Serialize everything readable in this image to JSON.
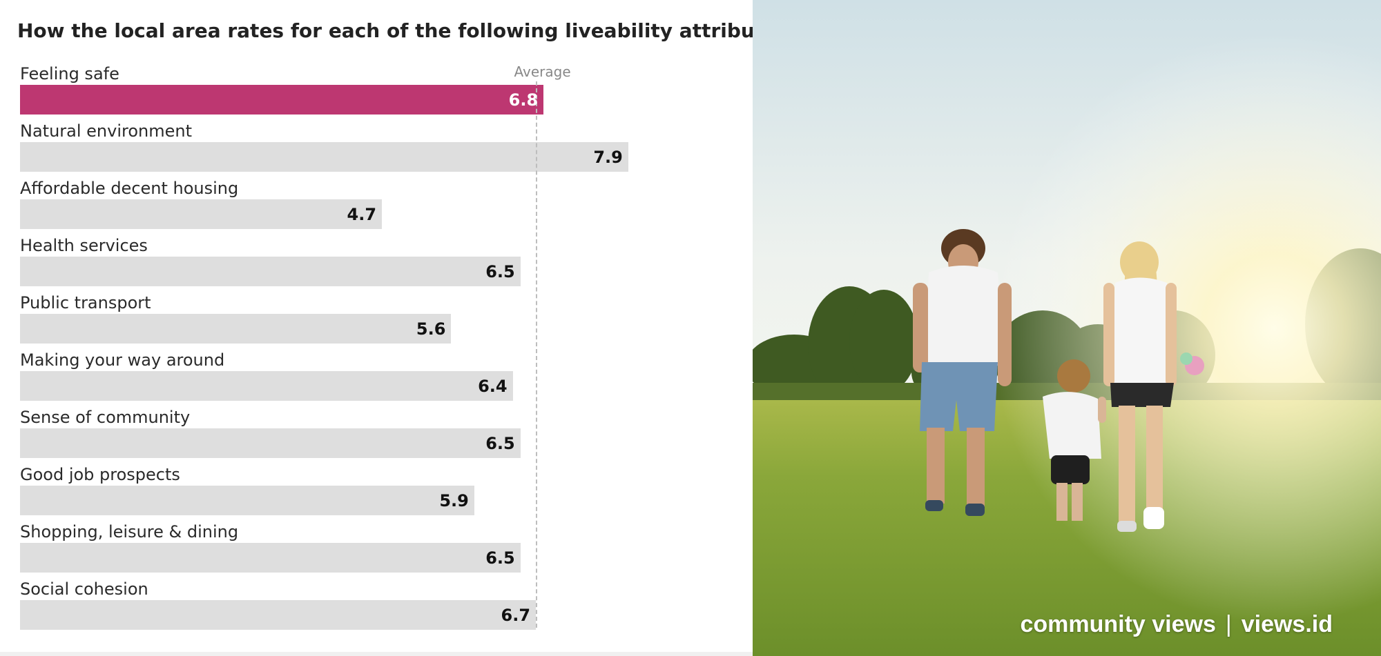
{
  "chart_data": {
    "type": "bar",
    "orientation": "horizontal",
    "title": "How the local area rates for each of the following liveability attributes",
    "categories": [
      "Feeling safe",
      "Natural environment",
      "Affordable decent housing",
      "Health services",
      "Public transport",
      "Making your way around",
      "Sense of community",
      "Good job prospects",
      "Shopping, leisure & dining",
      "Social cohesion"
    ],
    "values": [
      6.8,
      7.9,
      4.7,
      6.5,
      5.6,
      6.4,
      6.5,
      5.9,
      6.5,
      6.7
    ],
    "value_labels": [
      "6.8",
      "7.9",
      "4.7",
      "6.5",
      "5.6",
      "6.4",
      "6.5",
      "5.9",
      "6.5",
      "6.7"
    ],
    "highlight_index": 0,
    "reference_line": {
      "label": "Average",
      "value": 6.4
    },
    "xlim": [
      0,
      10
    ],
    "grid": false,
    "legend": "none",
    "colors": {
      "highlight": "#bd3771",
      "bar": "#dedede",
      "reference": "#bdbdbd"
    }
  },
  "photo": {
    "description_icon": "family-walking-in-park-photo"
  },
  "brand": {
    "left": "community views",
    "separator": "|",
    "right": "views.id"
  }
}
